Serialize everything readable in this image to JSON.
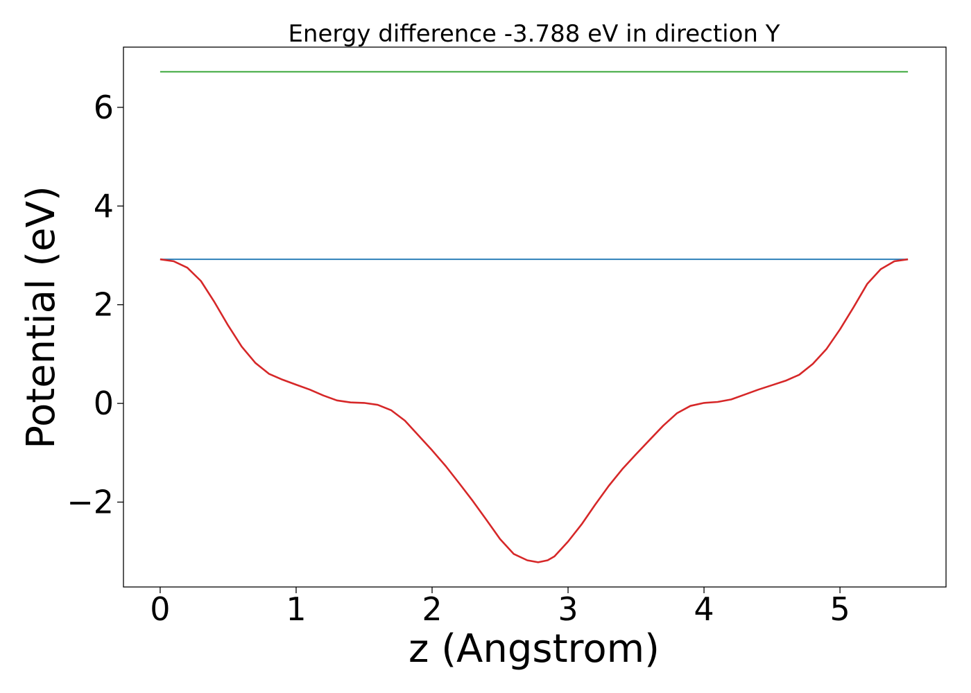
{
  "chart_data": {
    "type": "line",
    "title": "Energy difference -3.788 eV in direction Y",
    "xlabel": "z (Angstrom)",
    "ylabel": "Potential (eV)",
    "xlim": [
      -0.27,
      5.78
    ],
    "ylim": [
      -3.72,
      7.22
    ],
    "xticks": [
      0,
      1,
      2,
      3,
      4,
      5
    ],
    "xtick_labels": [
      "0",
      "1",
      "2",
      "3",
      "4",
      "5"
    ],
    "yticks": [
      -2,
      0,
      2,
      4,
      6
    ],
    "ytick_labels": [
      "−2",
      "0",
      "2",
      "4",
      "6"
    ],
    "grid": false,
    "series": [
      {
        "color": "#2ca02c",
        "x": [
          0,
          5.5
        ],
        "y": [
          6.72,
          6.72
        ]
      },
      {
        "color": "#1f77b4",
        "x": [
          0,
          5.5
        ],
        "y": [
          2.92,
          2.92
        ]
      },
      {
        "color": "#d62728",
        "x": [
          0,
          0.1,
          0.2,
          0.3,
          0.4,
          0.5,
          0.6,
          0.7,
          0.8,
          0.9,
          1.0,
          1.1,
          1.2,
          1.3,
          1.4,
          1.5,
          1.6,
          1.7,
          1.8,
          1.9,
          2.0,
          2.1,
          2.2,
          2.3,
          2.4,
          2.5,
          2.6,
          2.7,
          2.78,
          2.85,
          2.9,
          3.0,
          3.1,
          3.2,
          3.3,
          3.4,
          3.5,
          3.6,
          3.7,
          3.8,
          3.9,
          4.0,
          4.1,
          4.2,
          4.3,
          4.4,
          4.5,
          4.6,
          4.7,
          4.8,
          4.9,
          5.0,
          5.1,
          5.2,
          5.3,
          5.4,
          5.5
        ],
        "y": [
          2.92,
          2.88,
          2.75,
          2.48,
          2.05,
          1.58,
          1.15,
          0.82,
          0.6,
          0.48,
          0.38,
          0.28,
          0.16,
          0.06,
          0.02,
          0.01,
          -0.03,
          -0.14,
          -0.35,
          -0.65,
          -0.95,
          -1.27,
          -1.62,
          -1.98,
          -2.36,
          -2.75,
          -3.05,
          -3.18,
          -3.22,
          -3.18,
          -3.1,
          -2.8,
          -2.45,
          -2.05,
          -1.67,
          -1.33,
          -1.03,
          -0.74,
          -0.45,
          -0.2,
          -0.05,
          0.01,
          0.03,
          0.08,
          0.18,
          0.28,
          0.37,
          0.46,
          0.58,
          0.8,
          1.1,
          1.5,
          1.95,
          2.42,
          2.72,
          2.88,
          2.92
        ]
      }
    ]
  }
}
